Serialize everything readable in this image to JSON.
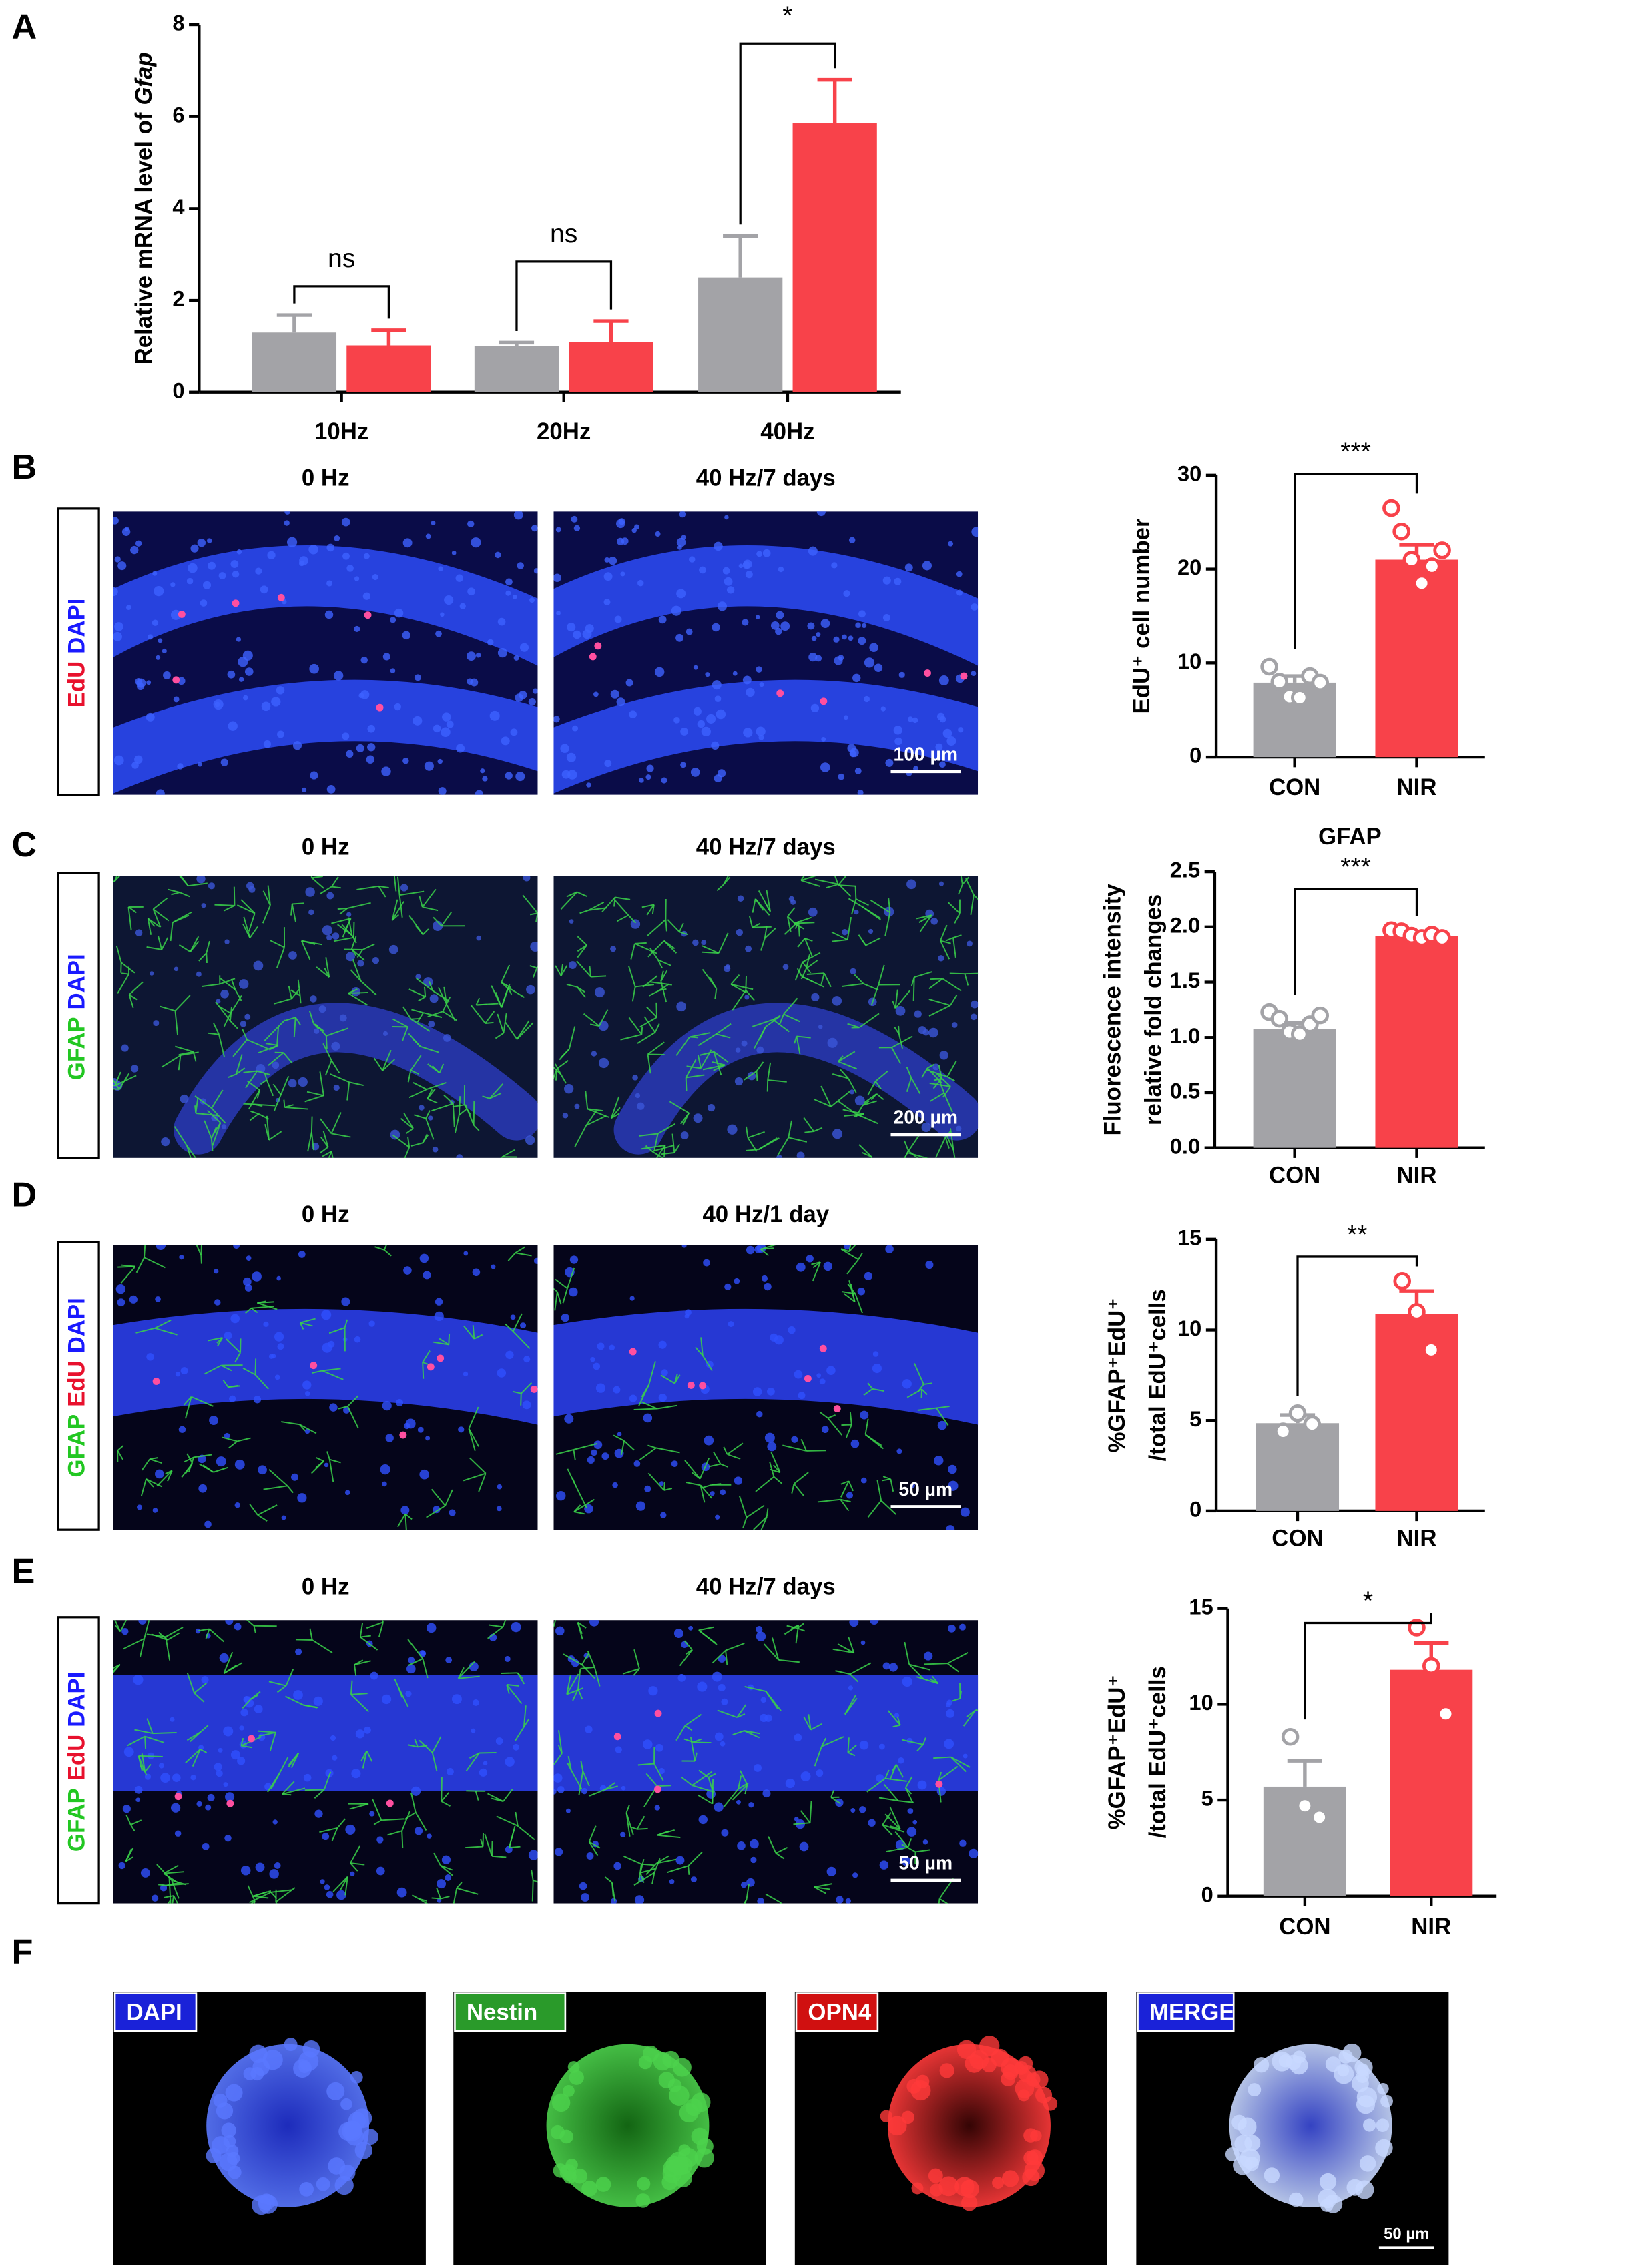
{
  "panel_letters": [
    "A",
    "B",
    "C",
    "D",
    "E",
    "F"
  ],
  "chart_data": [
    {
      "type": "bar",
      "y_label": [
        "Relative mRNA level of"
      ],
      "y_label_italic": "Gfap",
      "categories": [
        "10Hz",
        "20Hz",
        "40Hz"
      ],
      "series": [
        {
          "color": "#a3a3a7",
          "values": [
            1.3,
            1.0,
            2.5
          ],
          "errors": [
            0.38,
            0.08,
            0.9
          ]
        },
        {
          "color": "#f8424a",
          "values": [
            1.02,
            1.1,
            5.85
          ],
          "errors": [
            0.33,
            0.45,
            0.95
          ]
        }
      ],
      "annotations": [
        "ns",
        "ns",
        "*"
      ],
      "ylim": [
        0,
        8
      ],
      "yticks": [
        0,
        2,
        4,
        6,
        8
      ]
    },
    {
      "type": "bar",
      "y_label": [
        "EdU⁺ cell number"
      ],
      "categories": [
        "CON",
        "NIR"
      ],
      "colors": [
        "#a3a3a7",
        "#f8424a"
      ],
      "values": [
        7.9,
        21.0
      ],
      "errors": [
        0.7,
        1.6
      ],
      "points": [
        [
          9.6,
          8.0,
          6.4,
          6.3,
          8.6,
          7.9
        ],
        [
          26.5,
          24.0,
          21.0,
          18.5,
          20.3,
          22.0
        ]
      ],
      "annotations": [
        "***"
      ],
      "ylim": [
        0,
        30
      ],
      "yticks": [
        0,
        10,
        20,
        30
      ]
    },
    {
      "type": "bar",
      "title": "GFAP",
      "y_label": [
        "Fluorescence intensity",
        "relative fold changes"
      ],
      "categories": [
        "CON",
        "NIR"
      ],
      "colors": [
        "#a3a3a7",
        "#f8424a"
      ],
      "values": [
        1.08,
        1.92
      ],
      "errors": [
        0.05,
        0.03
      ],
      "points": [
        [
          1.23,
          1.17,
          1.05,
          1.03,
          1.12,
          1.2
        ],
        [
          1.97,
          1.96,
          1.92,
          1.9,
          1.93,
          1.9
        ]
      ],
      "annotations": [
        "***"
      ],
      "ylim": [
        0,
        2.5
      ],
      "yticks": [
        {
          "value": 0,
          "label": "0.0"
        },
        0.5,
        {
          "value": 1,
          "label": "1.0"
        },
        1.5,
        {
          "value": 2,
          "label": "2.0"
        },
        2.5
      ]
    },
    {
      "type": "bar",
      "y_label": [
        "%GFAP⁺EdU⁺",
        "/total EdU⁺cells"
      ],
      "categories": [
        "CON",
        "NIR"
      ],
      "colors": [
        "#a3a3a7",
        "#f8424a"
      ],
      "values": [
        4.85,
        10.9
      ],
      "errors": [
        0.45,
        1.25
      ],
      "points": [
        [
          4.4,
          5.4,
          4.8
        ],
        [
          12.7,
          11.0,
          8.9
        ]
      ],
      "annotations": [
        "**"
      ],
      "ylim": [
        0,
        15
      ],
      "yticks": [
        0,
        5,
        10,
        15
      ]
    },
    {
      "type": "bar",
      "y_label": [
        "%GFAP⁺EdU⁺",
        "/total EdU⁺cells"
      ],
      "categories": [
        "CON",
        "NIR"
      ],
      "colors": [
        "#a3a3a7",
        "#f8424a"
      ],
      "values": [
        5.7,
        11.8
      ],
      "errors": [
        1.35,
        1.4
      ],
      "points": [
        [
          8.3,
          4.7,
          4.1
        ],
        [
          14.0,
          12.0,
          9.5
        ]
      ],
      "annotations": [
        "*"
      ],
      "ylim": [
        0,
        15
      ],
      "yticks": [
        0,
        5,
        10,
        15
      ]
    }
  ],
  "image_rows": [
    {
      "headers": [
        "0 Hz",
        "40 Hz/7 days"
      ],
      "stain": [
        {
          "text": "EdU",
          "color": "#e8112d"
        },
        {
          "text": "DAPI",
          "color": "#1a1aff"
        }
      ],
      "scale_bar": "100 µm"
    },
    {
      "headers": [
        "0 Hz",
        "40 Hz/7 days"
      ],
      "stain": [
        {
          "text": "GFAP",
          "color": "#22c722"
        },
        {
          "text": "DAPI",
          "color": "#1a1aff"
        }
      ],
      "scale_bar": "200 µm"
    },
    {
      "headers": [
        "0 Hz",
        "40 Hz/1 day"
      ],
      "stain": [
        {
          "text": "GFAP",
          "color": "#22c722"
        },
        {
          "text": "EdU",
          "color": "#e8112d"
        },
        {
          "text": "DAPI",
          "color": "#1a1aff"
        }
      ],
      "scale_bar": "50 µm"
    },
    {
      "headers": [
        "0 Hz",
        "40 Hz/7 days"
      ],
      "stain": [
        {
          "text": "GFAP",
          "color": "#22c722"
        },
        {
          "text": "EdU",
          "color": "#e8112d"
        },
        {
          "text": "DAPI",
          "color": "#1a1aff"
        }
      ],
      "scale_bar": "50 µm"
    }
  ],
  "cell_panels": {
    "labels": [
      {
        "text": "DAPI",
        "color": "#1a22d8"
      },
      {
        "text": "Nestin",
        "color": "#2a9a2a"
      },
      {
        "text": "OPN4",
        "color": "#d01010"
      },
      {
        "text": "MERGE",
        "color": "#1a22d8"
      }
    ],
    "scale_bar": "50 µm"
  }
}
